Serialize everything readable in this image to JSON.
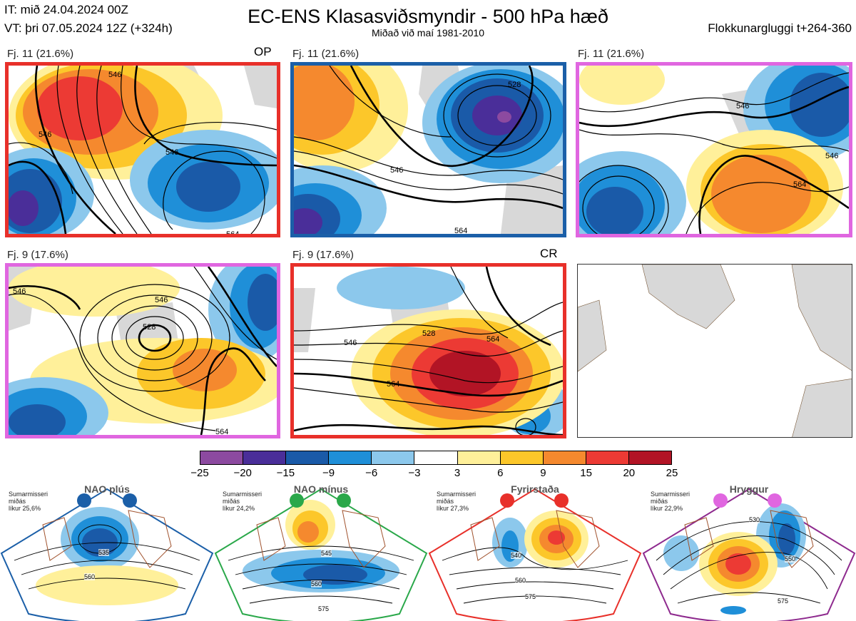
{
  "header": {
    "init_time": "IT: mið 24.04.2024 00Z",
    "valid_time": "VT: þri 07.05.2024 12Z  (+324h)",
    "title": "EC-ENS Klasasviðsmyndir - 500 hPa hæð",
    "subtitle": "Miðað við maí 1981-2010",
    "cluster_window": "Flokkunargluggi t+264-360"
  },
  "panels": [
    {
      "label": "Fj. 11 (21.6%)",
      "tag": "OP",
      "border_color": "#e8302a",
      "contours": [
        "546",
        "546",
        "546",
        "564"
      ]
    },
    {
      "label": "Fj. 11 (21.6%)",
      "tag": "",
      "border_color": "#1b5fa8",
      "contours": [
        "528",
        "546",
        "564"
      ]
    },
    {
      "label": "Fj. 11 (21.6%)",
      "tag": "",
      "border_color": "#e066e0",
      "contours": [
        "546",
        "564",
        "546"
      ]
    },
    {
      "label": "Fj. 9 (17.6%)",
      "tag": "",
      "border_color": "#e066e0",
      "contours": [
        "528",
        "546",
        "546",
        "564"
      ]
    },
    {
      "label": "Fj. 9 (17.6%)",
      "tag": "CR",
      "border_color": "#e8302a",
      "contours": [
        "528",
        "546",
        "564",
        "564"
      ]
    }
  ],
  "colorbar": {
    "colors": [
      "#8c4aa0",
      "#4a2e99",
      "#1a5aa8",
      "#1f8fd8",
      "#8cc8ec",
      "#ffffff",
      "#fff09a",
      "#fcc72a",
      "#f5892e",
      "#ec3a34",
      "#b21425"
    ],
    "ticks": [
      "−25",
      "−20",
      "−15",
      "−9",
      "−6",
      "−3",
      "3",
      "6",
      "9",
      "15",
      "20",
      "25"
    ]
  },
  "regimes": [
    {
      "name": "NAO plús",
      "note": "Sumarmisseri\nmiðás\nlíkur 25,6%",
      "color": "#1b5fa8",
      "contours": [
        "535",
        "560"
      ]
    },
    {
      "name": "NAO mínus",
      "note": "Sumarmisseri\nmiðás\nlíkur 24,2%",
      "color": "#2aa84a",
      "contours": [
        "545",
        "560",
        "575"
      ]
    },
    {
      "name": "Fyrirstaða",
      "note": "Sumarmisseri\nmiðás\nlíkur 27,3%",
      "color": "#e8302a",
      "contours": [
        "540",
        "560",
        "575"
      ]
    },
    {
      "name": "Hryggur",
      "note": "Sumarmisseri\nmiðás\nlíkur 22,9%",
      "color": "#e066e0",
      "contours": [
        "530",
        "550",
        "575"
      ]
    }
  ]
}
